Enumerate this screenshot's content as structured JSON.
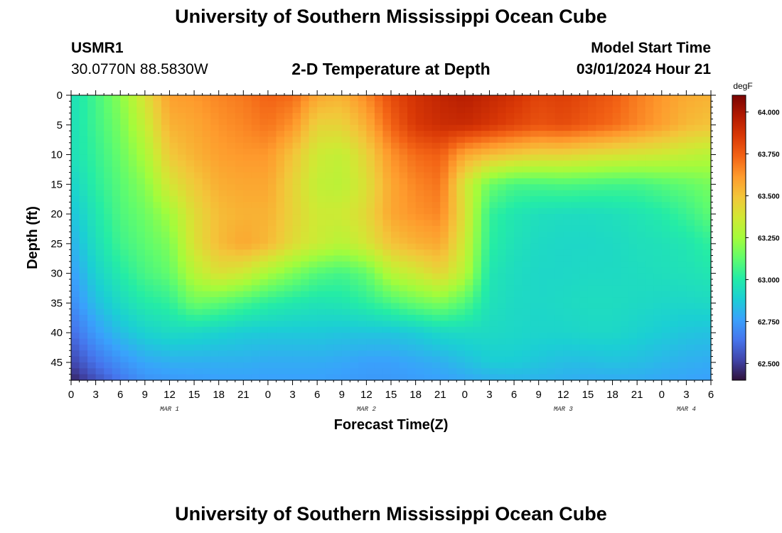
{
  "header": {
    "title": "University of Southern Mississippi Ocean Cube",
    "station": "USMR1",
    "coords": "30.0770N  88.5830W",
    "chart_title": "2-D Temperature at Depth",
    "model_label": "Model Start Time",
    "model_time": "03/01/2024 Hour 21"
  },
  "footer": {
    "title": "University of Southern Mississippi Ocean Cube"
  },
  "chart_data": {
    "type": "heatmap",
    "title": "2-D Temperature at Depth",
    "xlabel": "Forecast Time(Z)",
    "ylabel": "Depth (ft)",
    "colorbar_label": "degF",
    "xlim": [
      0,
      78
    ],
    "ylim": [
      48,
      0
    ],
    "x_ticks": [
      "0",
      "3",
      "6",
      "9",
      "12",
      "15",
      "18",
      "21",
      "0",
      "3",
      "6",
      "9",
      "12",
      "15",
      "18",
      "21",
      "0",
      "3",
      "6",
      "9",
      "12",
      "15",
      "18",
      "21",
      "0",
      "3",
      "6"
    ],
    "day_labels": [
      {
        "label": "MAR 1",
        "hour": 12
      },
      {
        "label": "MAR 2",
        "hour": 36
      },
      {
        "label": "MAR 3",
        "hour": 60
      },
      {
        "label": "MAR 4",
        "hour": 75
      }
    ],
    "y_ticks": [
      0,
      5,
      10,
      15,
      20,
      25,
      30,
      35,
      40,
      45
    ],
    "colorbar_ticks": [
      "62.500",
      "62.750",
      "63.000",
      "63.250",
      "63.500",
      "63.750",
      "64.000"
    ],
    "colorbar_range": [
      62.4,
      64.1
    ],
    "color_scale": [
      "#30123b",
      "#4145ab",
      "#4675ed",
      "#39a2fc",
      "#1bcfd4",
      "#24eca6",
      "#61fc6c",
      "#a4fc3b",
      "#d1e834",
      "#f3c63a",
      "#fe9b2d",
      "#f36315",
      "#d93806",
      "#b11901",
      "#7a0403"
    ],
    "depths": [
      0,
      5,
      10,
      15,
      20,
      25,
      30,
      35,
      40,
      45,
      48
    ],
    "hours": [
      0,
      3,
      6,
      9,
      12,
      15,
      18,
      21,
      24,
      27,
      30,
      33,
      36,
      39,
      42,
      45,
      48,
      51,
      54,
      57,
      60,
      63,
      66,
      69,
      72,
      75,
      78
    ],
    "values": [
      [
        62.95,
        63.07,
        63.2,
        63.4,
        63.6,
        63.62,
        63.66,
        63.69,
        63.74,
        63.72,
        63.58,
        63.55,
        63.65,
        63.8,
        63.88,
        63.93,
        63.96,
        63.92,
        63.88,
        63.82,
        63.84,
        63.8,
        63.76,
        63.68,
        63.62,
        63.57,
        63.55
      ],
      [
        62.95,
        63.06,
        63.17,
        63.34,
        63.55,
        63.58,
        63.63,
        63.66,
        63.7,
        63.63,
        63.45,
        63.45,
        63.56,
        63.74,
        63.86,
        63.9,
        63.91,
        63.87,
        63.82,
        63.78,
        63.8,
        63.76,
        63.72,
        63.66,
        63.6,
        63.53,
        63.5
      ],
      [
        62.95,
        63.04,
        63.14,
        63.27,
        63.48,
        63.55,
        63.6,
        63.62,
        63.62,
        63.5,
        63.36,
        63.33,
        63.45,
        63.63,
        63.72,
        63.75,
        63.58,
        63.52,
        63.48,
        63.45,
        63.45,
        63.42,
        63.4,
        63.38,
        63.36,
        63.33,
        63.3
      ],
      [
        62.9,
        63.02,
        63.11,
        63.2,
        63.38,
        63.48,
        63.56,
        63.58,
        63.58,
        63.45,
        63.33,
        63.31,
        63.4,
        63.58,
        63.66,
        63.7,
        63.38,
        63.15,
        63.08,
        63.08,
        63.09,
        63.08,
        63.07,
        63.07,
        63.1,
        63.13,
        63.17
      ],
      [
        62.85,
        62.98,
        63.09,
        63.15,
        63.25,
        63.42,
        63.52,
        63.55,
        63.55,
        63.45,
        63.36,
        63.36,
        63.43,
        63.58,
        63.63,
        63.66,
        63.4,
        63.04,
        62.98,
        62.95,
        62.94,
        62.94,
        62.95,
        62.97,
        63.0,
        63.05,
        63.12
      ],
      [
        62.8,
        62.95,
        63.06,
        63.12,
        63.18,
        63.4,
        63.52,
        63.58,
        63.53,
        63.42,
        63.35,
        63.3,
        63.38,
        63.5,
        63.55,
        63.58,
        63.36,
        63.02,
        62.96,
        62.93,
        62.92,
        62.92,
        62.93,
        62.95,
        62.96,
        62.98,
        63.03
      ],
      [
        62.75,
        62.9,
        63.0,
        63.08,
        63.13,
        63.3,
        63.4,
        63.36,
        63.26,
        63.18,
        63.1,
        63.07,
        63.13,
        63.3,
        63.36,
        63.44,
        63.3,
        62.98,
        62.94,
        62.92,
        62.92,
        62.93,
        62.93,
        62.94,
        62.95,
        62.96,
        62.98
      ],
      [
        62.7,
        62.84,
        62.93,
        63.0,
        63.03,
        63.15,
        63.12,
        63.07,
        63.02,
        62.99,
        62.97,
        62.98,
        63.02,
        63.08,
        63.14,
        63.18,
        63.1,
        62.96,
        62.93,
        62.92,
        62.93,
        62.94,
        62.94,
        62.93,
        62.92,
        62.92,
        62.93
      ],
      [
        62.62,
        62.75,
        62.84,
        62.9,
        62.93,
        62.92,
        62.9,
        62.88,
        62.87,
        62.87,
        62.87,
        62.86,
        62.86,
        62.86,
        62.88,
        62.92,
        62.93,
        62.93,
        62.92,
        62.91,
        62.91,
        62.92,
        62.92,
        62.9,
        62.88,
        62.86,
        62.85
      ],
      [
        62.52,
        62.64,
        62.72,
        62.78,
        62.8,
        62.8,
        62.8,
        62.8,
        62.79,
        62.79,
        62.79,
        62.78,
        62.76,
        62.76,
        62.78,
        62.8,
        62.84,
        62.88,
        62.88,
        62.86,
        62.84,
        62.84,
        62.85,
        62.84,
        62.82,
        62.8,
        62.79
      ],
      [
        62.44,
        62.55,
        62.65,
        62.72,
        62.74,
        62.75,
        62.76,
        62.76,
        62.76,
        62.76,
        62.76,
        62.75,
        62.74,
        62.74,
        62.75,
        62.76,
        62.78,
        62.8,
        62.81,
        62.81,
        62.8,
        62.79,
        62.79,
        62.79,
        62.78,
        62.77,
        62.76
      ]
    ]
  }
}
